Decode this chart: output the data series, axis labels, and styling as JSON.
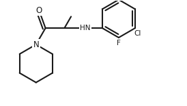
{
  "bg_color": "#ffffff",
  "line_color": "#1a1a1a",
  "line_width": 1.5,
  "label_N_pip": "N",
  "label_HN": "HN",
  "label_O": "O",
  "label_F": "F",
  "label_Cl": "Cl",
  "font_size_main": 8.5,
  "font_size_small": 7.5,
  "xlim": [
    0,
    274
  ],
  "ylim": [
    0,
    155
  ]
}
